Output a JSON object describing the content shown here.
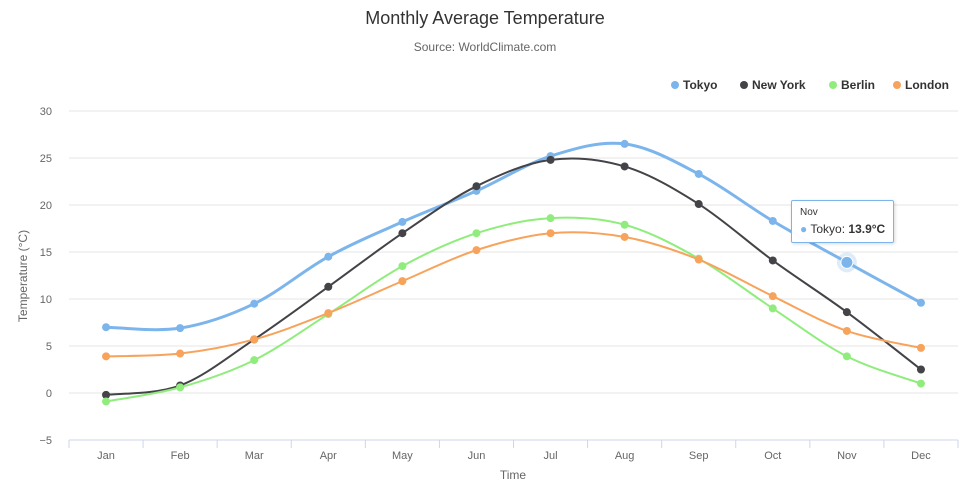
{
  "chart_data": {
    "type": "line",
    "title": "Monthly Average Temperature",
    "subtitle": "Source: WorldClimate.com",
    "xlabel": "Time",
    "ylabel": "Temperature (°C)",
    "ylim": [
      -5,
      30
    ],
    "yticks": [
      -5,
      0,
      5,
      10,
      15,
      20,
      25,
      30
    ],
    "grid": true,
    "legend_position": "top-right",
    "categories": [
      "Jan",
      "Feb",
      "Mar",
      "Apr",
      "May",
      "Jun",
      "Jul",
      "Aug",
      "Sep",
      "Oct",
      "Nov",
      "Dec"
    ],
    "series": [
      {
        "name": "Tokyo",
        "color": "#7cb5ec",
        "values": [
          7.0,
          6.9,
          9.5,
          14.5,
          18.2,
          21.5,
          25.2,
          26.5,
          23.3,
          18.3,
          13.9,
          9.6
        ]
      },
      {
        "name": "New York",
        "color": "#434348",
        "values": [
          -0.2,
          0.8,
          5.7,
          11.3,
          17.0,
          22.0,
          24.8,
          24.1,
          20.1,
          14.1,
          8.6,
          2.5
        ]
      },
      {
        "name": "Berlin",
        "color": "#90ed7d",
        "values": [
          -0.9,
          0.6,
          3.5,
          8.4,
          13.5,
          17.0,
          18.6,
          17.9,
          14.3,
          9.0,
          3.9,
          1.0
        ]
      },
      {
        "name": "London",
        "color": "#f7a35c",
        "values": [
          3.9,
          4.2,
          5.7,
          8.5,
          11.9,
          15.2,
          17.0,
          16.6,
          14.2,
          10.3,
          6.6,
          4.8
        ]
      }
    ]
  },
  "tooltip": {
    "header": "Nov",
    "series_label": "Tokyo: ",
    "value": "13.9°C",
    "series_index": 0,
    "category_index": 10
  }
}
